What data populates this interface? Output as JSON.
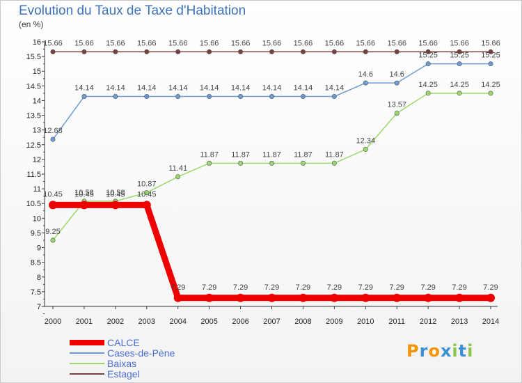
{
  "chart_data": {
    "type": "line",
    "title": "Evolution du Taux de Taxe d'Habitation",
    "subtitle": "(en %)",
    "x": [
      "2000",
      "2001",
      "2002",
      "2003",
      "2004",
      "2005",
      "2006",
      "2007",
      "2008",
      "2009",
      "2010",
      "2011",
      "2012",
      "2013",
      "2014"
    ],
    "ylim": [
      7,
      16
    ],
    "yticks": [
      "7",
      "7.5",
      "8",
      "8.5",
      "9",
      "9.5",
      "10",
      "10.5",
      "11",
      "11.5",
      "12",
      "12.5",
      "13",
      "13.5",
      "14",
      "14.5",
      "15",
      "15.5",
      "16"
    ],
    "grid": false,
    "legend_position": "bottom-left",
    "series": [
      {
        "name": "CALCE",
        "color": "#ee0000",
        "values": [
          10.45,
          10.45,
          10.45,
          10.45,
          7.29,
          7.29,
          7.29,
          7.29,
          7.29,
          7.29,
          7.29,
          7.29,
          7.29,
          7.29,
          7.29
        ],
        "labels": [
          "10.45",
          "10.45",
          "10.45",
          "10.45",
          "7.29",
          "7.29",
          "7.29",
          "7.29",
          "7.29",
          "7.29",
          "7.29",
          "7.29",
          "7.29",
          "7.29",
          "7.29"
        ]
      },
      {
        "name": "Cases-de-Pène",
        "color": "#6c9bd2",
        "values": [
          12.68,
          14.14,
          14.14,
          14.14,
          14.14,
          14.14,
          14.14,
          14.14,
          14.14,
          14.14,
          14.6,
          14.6,
          15.25,
          15.25,
          15.25
        ],
        "labels": [
          "12.68",
          "14.14",
          "14.14",
          "14.14",
          "14.14",
          "14.14",
          "14.14",
          "14.14",
          "14.14",
          "14.14",
          "14.6",
          "14.6",
          "15.25",
          "15.25",
          "15.25"
        ]
      },
      {
        "name": "Baixas",
        "color": "#9bd96e",
        "values": [
          9.25,
          10.58,
          10.58,
          10.87,
          11.41,
          11.87,
          11.87,
          11.87,
          11.87,
          11.87,
          12.34,
          13.57,
          14.25,
          14.25,
          14.25
        ],
        "labels": [
          "9.25",
          "10.58",
          "10.58",
          "10.87",
          "11.41",
          "11.87",
          "11.87",
          "11.87",
          "11.87",
          "11.87",
          "12.34",
          "13.57",
          "14.25",
          "14.25",
          "14.25"
        ]
      },
      {
        "name": "Estagel",
        "color": "#7a4040",
        "values": [
          15.66,
          15.66,
          15.66,
          15.66,
          15.66,
          15.66,
          15.66,
          15.66,
          15.66,
          15.66,
          15.66,
          15.66,
          15.66,
          15.66,
          15.66
        ],
        "labels": [
          "15.66",
          "15.66",
          "15.66",
          "15.66",
          "15.66",
          "15.66",
          "15.66",
          "15.66",
          "15.66",
          "15.66",
          "15.66",
          "15.66",
          "15.66",
          "15.66",
          "15.66"
        ]
      }
    ]
  },
  "logo": {
    "text": "Proxiti",
    "letters": [
      "P",
      "r",
      "o",
      "x",
      "i",
      "t",
      "i"
    ],
    "colors": [
      "#f29400",
      "#3b8fd4",
      "#f29400",
      "#3b8fd4",
      "#8bc34a",
      "#3b8fd4",
      "#8bc34a"
    ]
  }
}
